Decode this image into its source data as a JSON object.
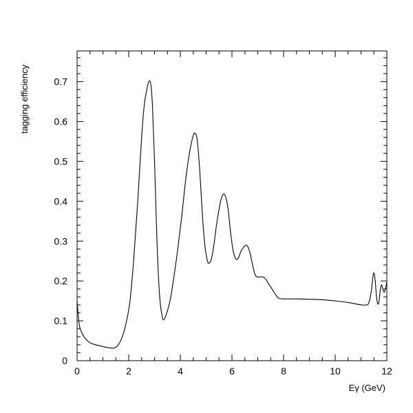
{
  "chart_data": {
    "type": "line",
    "title": "",
    "xlabel": "Eγ (GeV)",
    "ylabel": "tagging efficiency",
    "xlim": [
      0,
      12
    ],
    "ylim": [
      0,
      0.777
    ],
    "grid": false,
    "xticks": [
      0,
      2,
      4,
      6,
      8,
      10,
      12
    ],
    "xtick_labels": [
      "0",
      "2",
      "4",
      "6",
      "8",
      "10",
      "12"
    ],
    "yticks": [
      0,
      0.1,
      0.2,
      0.3,
      0.4,
      0.5,
      0.6,
      0.7
    ],
    "ytick_labels": [
      "0",
      "0.1",
      "0.2",
      "0.3",
      "0.4",
      "0.5",
      "0.6",
      "0.7"
    ],
    "series": [
      {
        "color": "#000000",
        "x": [
          0.0,
          0.05,
          0.1,
          0.2,
          0.3,
          0.4,
          0.5,
          0.7,
          0.9,
          1.1,
          1.3,
          1.45,
          1.6,
          1.75,
          1.9,
          2.05,
          2.2,
          2.35,
          2.5,
          2.6,
          2.7,
          2.78,
          2.85,
          2.92,
          3.0,
          3.1,
          3.2,
          3.3,
          3.36,
          3.45,
          3.6,
          3.75,
          3.9,
          4.05,
          4.2,
          4.35,
          4.5,
          4.57,
          4.65,
          4.75,
          4.85,
          4.95,
          5.05,
          5.12,
          5.2,
          5.3,
          5.4,
          5.5,
          5.6,
          5.7,
          5.78,
          5.85,
          5.95,
          6.05,
          6.15,
          6.25,
          6.35,
          6.45,
          6.55,
          6.62,
          6.7,
          6.8,
          6.9,
          7.0,
          7.1,
          7.2,
          7.3,
          7.4,
          7.5,
          7.6,
          7.7,
          7.8,
          8.0,
          8.5,
          9.0,
          9.5,
          10.0,
          10.5,
          11.0,
          11.2,
          11.3,
          11.4,
          11.45,
          11.5,
          11.55,
          11.6,
          11.65,
          11.7,
          11.75,
          11.8,
          11.85,
          11.9,
          11.95,
          12.0
        ],
        "y": [
          0.15,
          0.11,
          0.085,
          0.068,
          0.057,
          0.05,
          0.045,
          0.04,
          0.037,
          0.034,
          0.032,
          0.032,
          0.04,
          0.06,
          0.095,
          0.15,
          0.26,
          0.4,
          0.56,
          0.64,
          0.68,
          0.7,
          0.695,
          0.64,
          0.5,
          0.29,
          0.16,
          0.11,
          0.103,
          0.115,
          0.15,
          0.21,
          0.28,
          0.36,
          0.45,
          0.52,
          0.565,
          0.57,
          0.555,
          0.48,
          0.37,
          0.29,
          0.25,
          0.245,
          0.255,
          0.29,
          0.34,
          0.38,
          0.41,
          0.418,
          0.405,
          0.38,
          0.32,
          0.275,
          0.255,
          0.258,
          0.275,
          0.285,
          0.29,
          0.285,
          0.27,
          0.24,
          0.215,
          0.21,
          0.21,
          0.21,
          0.205,
          0.195,
          0.185,
          0.175,
          0.165,
          0.157,
          0.155,
          0.155,
          0.154,
          0.153,
          0.15,
          0.146,
          0.14,
          0.14,
          0.145,
          0.175,
          0.205,
          0.22,
          0.2,
          0.16,
          0.142,
          0.15,
          0.18,
          0.19,
          0.178,
          0.172,
          0.182,
          0.198
        ]
      }
    ]
  }
}
